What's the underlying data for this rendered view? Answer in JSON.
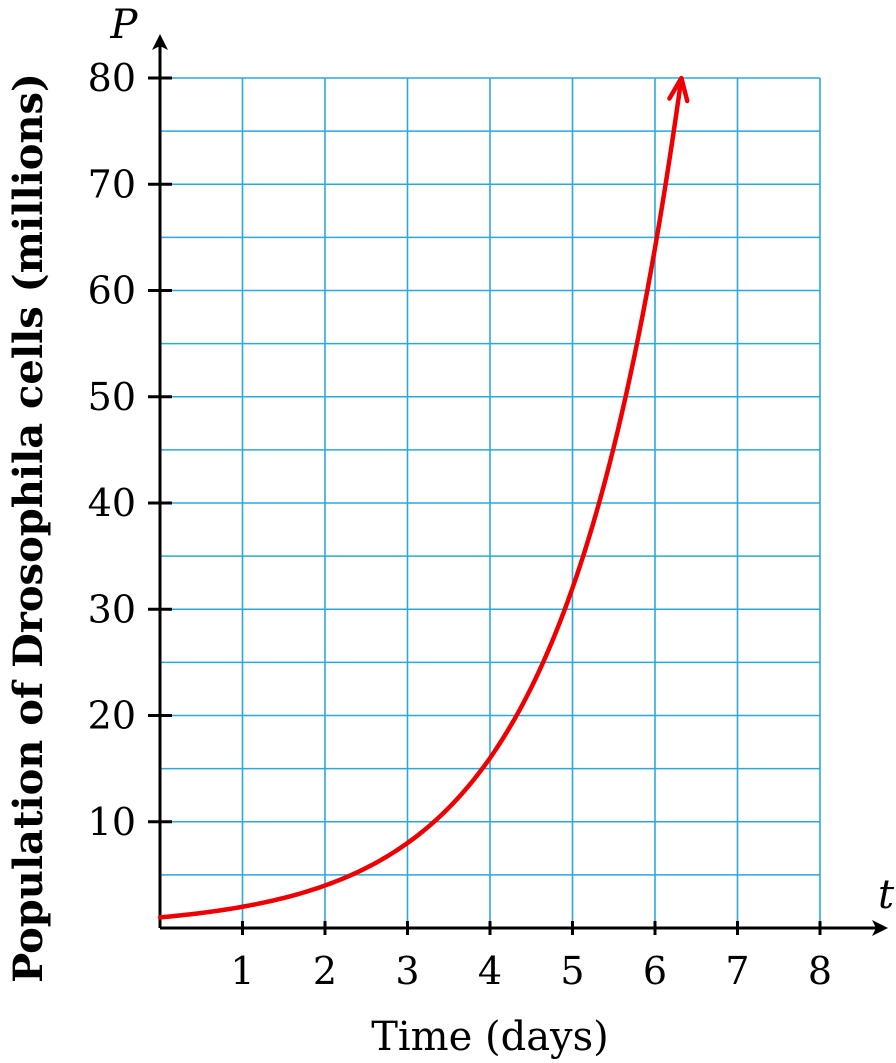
{
  "chart_data": {
    "type": "line",
    "xvar": "t",
    "yvar": "P",
    "xlabel": "Time (days)",
    "ylabel": "Population of Drosophila cells (millions)",
    "xlim": [
      0,
      8
    ],
    "ylim": [
      0,
      80
    ],
    "xticks": [
      1,
      2,
      3,
      4,
      5,
      6,
      7,
      8
    ],
    "yticks": [
      10,
      20,
      30,
      40,
      50,
      60,
      70,
      80
    ],
    "grid": true,
    "grid_minor_y_step": 5,
    "grid_x_step": 1,
    "arrow_at_end": true,
    "series": [
      {
        "x": [
          0,
          1,
          2,
          3,
          4,
          5,
          6,
          6.32
        ],
        "y": [
          1,
          2,
          4,
          8,
          16,
          32,
          64,
          80
        ]
      }
    ],
    "colors": {
      "curve": "#ee0000",
      "grid": "#29a8e0",
      "axis": "#000000"
    }
  }
}
